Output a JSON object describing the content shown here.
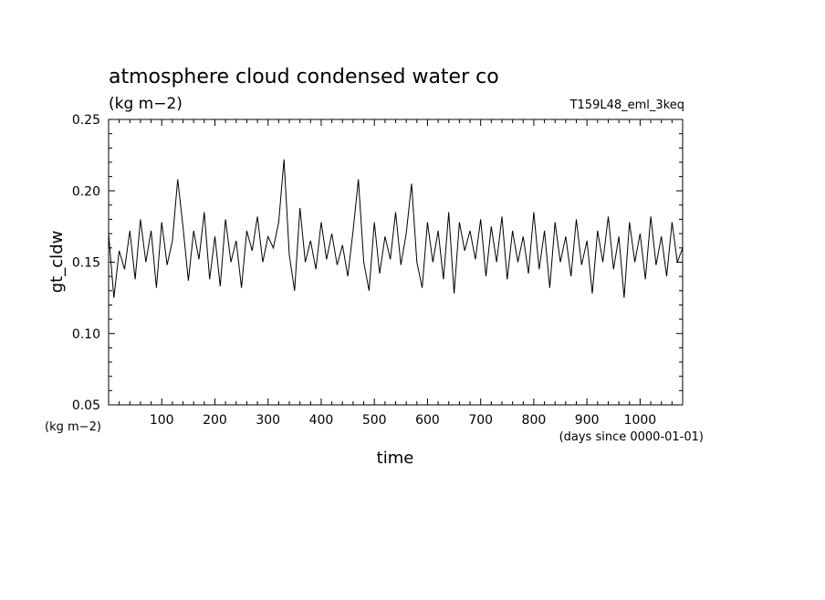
{
  "chart_data": {
    "type": "line",
    "title": "atmosphere cloud condensed water co",
    "subtitle": "(kg m−2)",
    "experiment": "T159L48_eml_3keq",
    "xlabel": "time",
    "xunit": "(days since 0000-01-01)",
    "ylabel": "gt_cldw",
    "yunit": "(kg m−2)",
    "xlim": [
      0,
      1080
    ],
    "ylim": [
      0.05,
      0.25
    ],
    "xticks": [
      "100",
      "200",
      "300",
      "400",
      "500",
      "600",
      "700",
      "800",
      "900",
      "1000"
    ],
    "yticks": [
      "0.05",
      "0.10",
      "0.15",
      "0.20",
      "0.25"
    ],
    "grid": false,
    "series": [
      {
        "x": [
          0,
          10,
          20,
          30,
          40,
          50,
          60,
          70,
          80,
          90,
          100,
          110,
          120,
          130,
          140,
          150,
          160,
          170,
          180,
          190,
          200,
          210,
          220,
          230,
          240,
          250,
          260,
          270,
          280,
          290,
          300,
          310,
          320,
          330,
          340,
          350,
          360,
          370,
          380,
          390,
          400,
          410,
          420,
          430,
          440,
          450,
          460,
          470,
          480,
          490,
          500,
          510,
          520,
          530,
          540,
          550,
          560,
          570,
          580,
          590,
          600,
          610,
          620,
          630,
          640,
          650,
          660,
          670,
          680,
          690,
          700,
          710,
          720,
          730,
          740,
          750,
          760,
          770,
          780,
          790,
          800,
          810,
          820,
          830,
          840,
          850,
          860,
          870,
          880,
          890,
          900,
          910,
          920,
          930,
          940,
          950,
          960,
          970,
          980,
          990,
          1000,
          1010,
          1020,
          1030,
          1040,
          1050,
          1060,
          1070,
          1080
        ],
        "values": [
          0.17,
          0.125,
          0.158,
          0.145,
          0.172,
          0.138,
          0.18,
          0.15,
          0.172,
          0.132,
          0.178,
          0.148,
          0.165,
          0.208,
          0.175,
          0.137,
          0.172,
          0.152,
          0.185,
          0.138,
          0.168,
          0.133,
          0.18,
          0.15,
          0.165,
          0.132,
          0.172,
          0.158,
          0.182,
          0.15,
          0.168,
          0.16,
          0.178,
          0.222,
          0.155,
          0.13,
          0.188,
          0.15,
          0.165,
          0.145,
          0.178,
          0.152,
          0.17,
          0.148,
          0.162,
          0.14,
          0.172,
          0.208,
          0.15,
          0.13,
          0.178,
          0.142,
          0.168,
          0.152,
          0.185,
          0.148,
          0.17,
          0.205,
          0.15,
          0.132,
          0.178,
          0.15,
          0.172,
          0.138,
          0.185,
          0.128,
          0.178,
          0.158,
          0.172,
          0.152,
          0.18,
          0.14,
          0.175,
          0.15,
          0.182,
          0.138,
          0.172,
          0.15,
          0.168,
          0.142,
          0.185,
          0.145,
          0.172,
          0.132,
          0.178,
          0.15,
          0.168,
          0.14,
          0.18,
          0.148,
          0.165,
          0.128,
          0.172,
          0.15,
          0.182,
          0.145,
          0.168,
          0.125,
          0.178,
          0.15,
          0.17,
          0.138,
          0.182,
          0.148,
          0.168,
          0.14,
          0.178,
          0.15,
          0.16
        ]
      }
    ]
  }
}
